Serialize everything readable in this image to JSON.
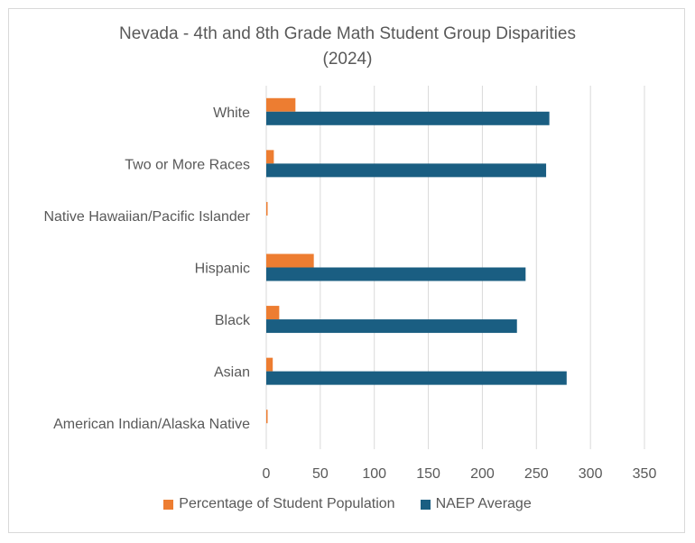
{
  "chart_data": {
    "type": "bar",
    "orientation": "horizontal",
    "title": "Nevada - 4th and 8th Grade Math Student Group Disparities",
    "subtitle": "(2024)",
    "categories": [
      "White",
      "Two or More Races",
      "Native Hawaiian/Pacific Islander",
      "Hispanic",
      "Black",
      "Asian",
      "American Indian/Alaska Native"
    ],
    "series": [
      {
        "name": "Percentage of Student Population",
        "color": "#ed7d31",
        "values": [
          27,
          7,
          1,
          44,
          12,
          6,
          1
        ]
      },
      {
        "name": "NAEP Average",
        "color": "#1a5e82",
        "values": [
          262,
          259,
          null,
          240,
          232,
          278,
          null
        ]
      }
    ],
    "xlim": [
      0,
      350
    ],
    "xticks": [
      0,
      50,
      100,
      150,
      200,
      250,
      300,
      350
    ],
    "grid": true,
    "legend": "bottom"
  }
}
